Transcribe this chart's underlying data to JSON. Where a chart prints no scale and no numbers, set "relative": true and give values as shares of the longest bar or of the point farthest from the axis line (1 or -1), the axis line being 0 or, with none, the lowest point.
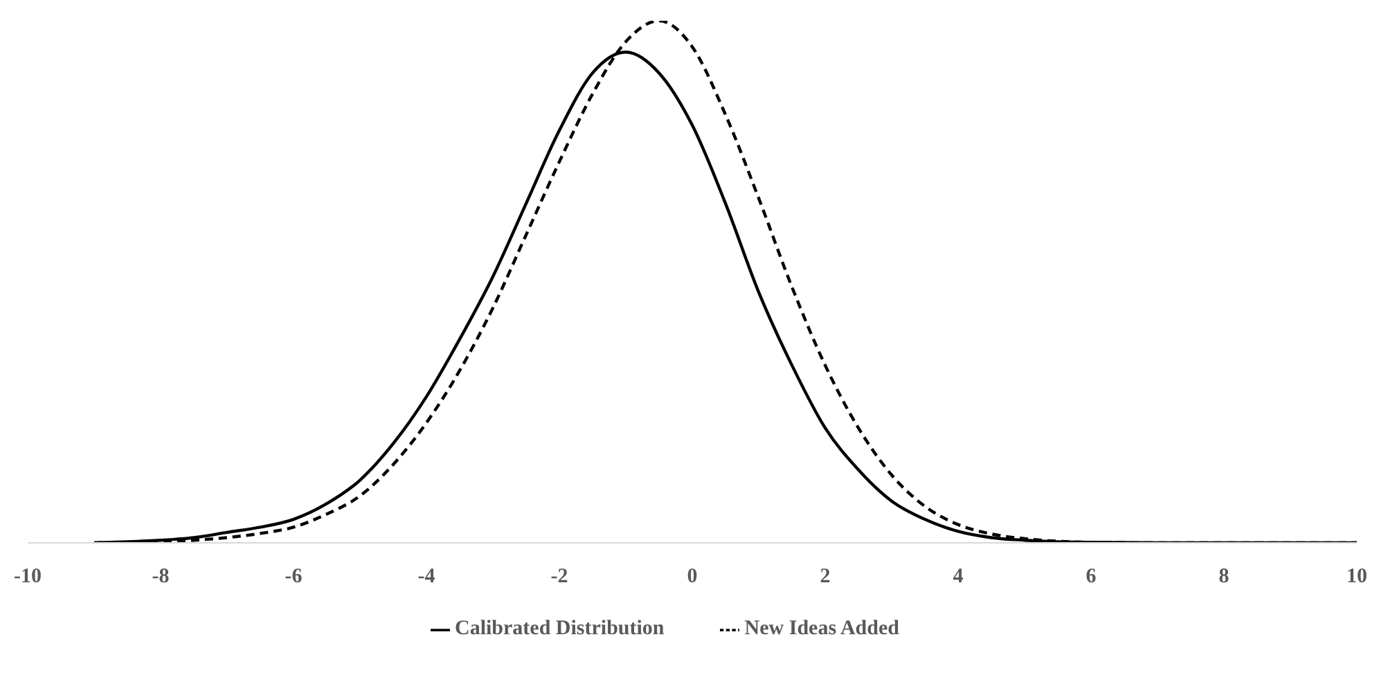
{
  "chart_data": {
    "type": "line",
    "relative": true,
    "xlim": [
      -10,
      10
    ],
    "xticks": [
      -10,
      -8,
      -6,
      -4,
      -2,
      0,
      2,
      4,
      6,
      8,
      10
    ],
    "legend": "bottom",
    "marker": "none",
    "x": [
      -9,
      -8.5,
      -8,
      -7.5,
      -7,
      -6.5,
      -6,
      -5.5,
      -5,
      -4.5,
      -4,
      -3.5,
      -3,
      -2.5,
      -2,
      -1.5,
      -1,
      -0.5,
      0,
      0.5,
      1,
      1.5,
      2,
      2.5,
      3,
      3.5,
      4,
      4.5,
      5,
      5.5,
      6,
      7,
      8,
      9,
      10
    ],
    "series": [
      {
        "name": "Calibrated Distribution",
        "color": "#000000",
        "line_style": "solid",
        "values": [
          0,
          0.002,
          0.005,
          0.01,
          0.02,
          0.03,
          0.045,
          0.075,
          0.12,
          0.19,
          0.28,
          0.39,
          0.51,
          0.65,
          0.79,
          0.9,
          0.94,
          0.9,
          0.8,
          0.65,
          0.48,
          0.34,
          0.22,
          0.14,
          0.08,
          0.045,
          0.022,
          0.01,
          0.005,
          0.002,
          0.001,
          0,
          0,
          0,
          0
        ]
      },
      {
        "name": "New Ideas Added",
        "color": "#000000",
        "line_style": "dashed",
        "values": [
          0,
          0.001,
          0.002,
          0.005,
          0.01,
          0.018,
          0.03,
          0.055,
          0.09,
          0.15,
          0.23,
          0.33,
          0.45,
          0.59,
          0.73,
          0.86,
          0.96,
          1,
          0.95,
          0.82,
          0.66,
          0.49,
          0.34,
          0.22,
          0.13,
          0.07,
          0.035,
          0.017,
          0.008,
          0.003,
          0.001,
          0,
          0,
          0,
          0
        ]
      }
    ]
  }
}
